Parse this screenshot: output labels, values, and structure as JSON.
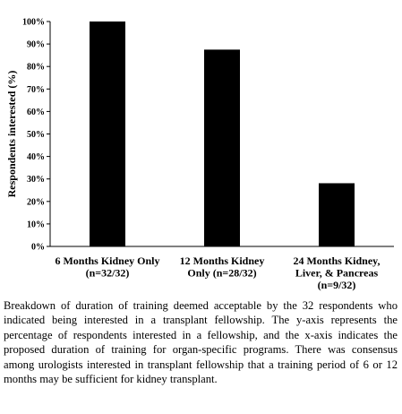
{
  "chart_data": {
    "type": "bar",
    "categories": [
      [
        "6 Months Kidney Only",
        "(n=32/32)"
      ],
      [
        "12 Months Kidney",
        "Only (n=28/32)"
      ],
      [
        "24 Months Kidney,",
        "Liver, & Pancreas",
        "(n=9/32)"
      ]
    ],
    "values": [
      100,
      87.5,
      28.1
    ],
    "ylabel": "Respondents interested (%)",
    "ylim": [
      0,
      100
    ],
    "yticks": [
      "0%",
      "10%",
      "20%",
      "30%",
      "40%",
      "50%",
      "60%",
      "70%",
      "80%",
      "90%",
      "100%"
    ],
    "bar_color": "#000000"
  },
  "caption": "Breakdown of duration of training deemed acceptable by the 32 respondents who indicated being interested in a transplant fellowship. The y-axis represents the percentage of respondents interested in a fellowship, and the x-axis indicates the proposed duration of training for organ-specific programs. There was consensus among urologists interested in transplant fellowship that a training period of 6 or 12 months may be sufficient for kidney transplant."
}
